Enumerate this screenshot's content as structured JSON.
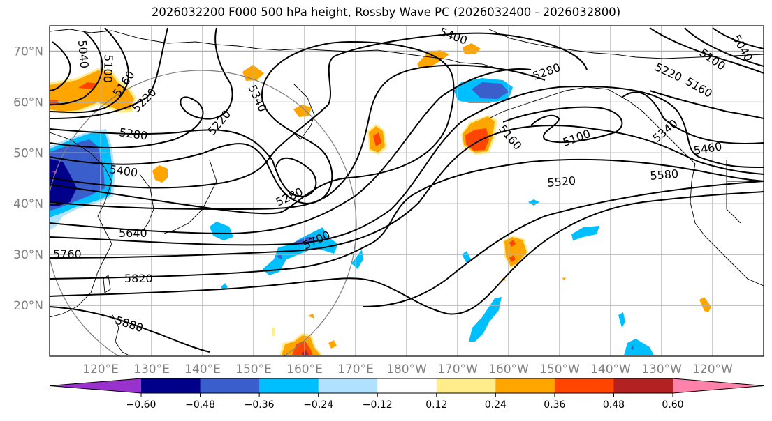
{
  "title": "2026032200 F000 500 hPa height, Rossby Wave PC (2026032400 - 2026032800)",
  "map": {
    "lat_labels": [
      "70°N",
      "60°N",
      "50°N",
      "40°N",
      "30°N",
      "20°N"
    ],
    "lat_values": [
      70,
      60,
      50,
      40,
      30,
      20
    ],
    "lon_labels": [
      "120°E",
      "130°E",
      "140°E",
      "150°E",
      "160°E",
      "170°E",
      "180°W",
      "170°W",
      "160°W",
      "150°W",
      "140°W",
      "130°W",
      "120°W"
    ],
    "lon_values": [
      120,
      130,
      140,
      150,
      160,
      170,
      180,
      190,
      200,
      210,
      220,
      230,
      240
    ],
    "extent": {
      "lon_min": 110,
      "lon_max": 250,
      "lat_min": 10,
      "lat_max": 75
    },
    "contour_variable": "500 hPa geopotential height (m)",
    "contour_interval": 60,
    "contour_labels": [
      {
        "text": "5040",
        "where": "northeast Asia"
      },
      {
        "text": "5100",
        "where": "northeast Asia"
      },
      {
        "text": "5160",
        "where": "Okhotsk"
      },
      {
        "text": "5220",
        "where": "Okhotsk"
      },
      {
        "text": "5280",
        "where": "northern China"
      },
      {
        "text": "5400",
        "where": "northern China"
      },
      {
        "text": "5640",
        "where": "Korea"
      },
      {
        "text": "5760",
        "where": "east China coast"
      },
      {
        "text": "5820",
        "where": "East China Sea"
      },
      {
        "text": "5880",
        "where": "Philippine Sea"
      },
      {
        "text": "5220",
        "where": "Sakhalin"
      },
      {
        "text": "5340",
        "where": "Sea of Okhotsk"
      },
      {
        "text": "5280",
        "where": "Kuril low"
      },
      {
        "text": "5700",
        "where": "western Pacific"
      },
      {
        "text": "5400",
        "where": "Chukotka"
      },
      {
        "text": "5280",
        "where": "Bering Sea"
      },
      {
        "text": "5160",
        "where": "Aleutians"
      },
      {
        "text": "5100",
        "where": "Gulf of Alaska low"
      },
      {
        "text": "5520",
        "where": "north Pacific"
      },
      {
        "text": "5580",
        "where": "northeast Pacific"
      },
      {
        "text": "5220",
        "where": "Yukon"
      },
      {
        "text": "5160",
        "where": "western Canada"
      },
      {
        "text": "5100",
        "where": "western Canada"
      },
      {
        "text": "5040",
        "where": "western Canada"
      },
      {
        "text": "5340",
        "where": "British Columbia"
      },
      {
        "text": "5460",
        "where": "Pacific Northwest"
      }
    ]
  },
  "colorbar": {
    "ticks": [
      "−0.60",
      "−0.48",
      "−0.36",
      "−0.24",
      "−0.12",
      "0.12",
      "0.24",
      "0.36",
      "0.48",
      "0.60"
    ],
    "tick_values": [
      -0.6,
      -0.48,
      -0.36,
      -0.24,
      -0.12,
      0.12,
      0.24,
      0.36,
      0.48,
      0.6
    ],
    "colors": [
      "#9932cc",
      "#00008b",
      "#3a5fcd",
      "#00bfff",
      "#b0e2ff",
      "#ffffff",
      "#ffec8b",
      "#ffa500",
      "#ff4500",
      "#b22222",
      "#ff82ab"
    ],
    "extend": "both"
  }
}
